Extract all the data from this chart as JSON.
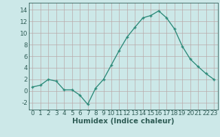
{
  "x": [
    0,
    1,
    2,
    3,
    4,
    5,
    6,
    7,
    8,
    9,
    10,
    11,
    12,
    13,
    14,
    15,
    16,
    17,
    18,
    19,
    20,
    21,
    22,
    23
  ],
  "y": [
    0.7,
    1.0,
    2.0,
    1.7,
    0.2,
    0.2,
    -0.7,
    -2.3,
    0.5,
    2.0,
    4.5,
    7.0,
    9.3,
    11.0,
    12.6,
    13.0,
    13.8,
    12.6,
    10.7,
    7.7,
    5.5,
    4.2,
    3.0,
    2.0
  ],
  "line_color": "#2e8b7a",
  "marker": "+",
  "bg_color": "#cce8e8",
  "grid_color": "#b8a8a8",
  "xlabel": "Humidex (Indice chaleur)",
  "xlim": [
    -0.5,
    23.5
  ],
  "ylim": [
    -3.2,
    15.2
  ],
  "yticks": [
    -2,
    0,
    2,
    4,
    6,
    8,
    10,
    12,
    14
  ],
  "xtick_labels": [
    "0",
    "1",
    "2",
    "3",
    "4",
    "5",
    "6",
    "7",
    "8",
    "9",
    "10",
    "11",
    "12",
    "13",
    "14",
    "15",
    "16",
    "17",
    "18",
    "19",
    "20",
    "21",
    "22",
    "23"
  ],
  "font_color": "#2e5c55",
  "xlabel_fontsize": 7.5,
  "tick_fontsize": 6.5,
  "linewidth": 1.0,
  "markersize": 3.5,
  "markeredgewidth": 1.0
}
